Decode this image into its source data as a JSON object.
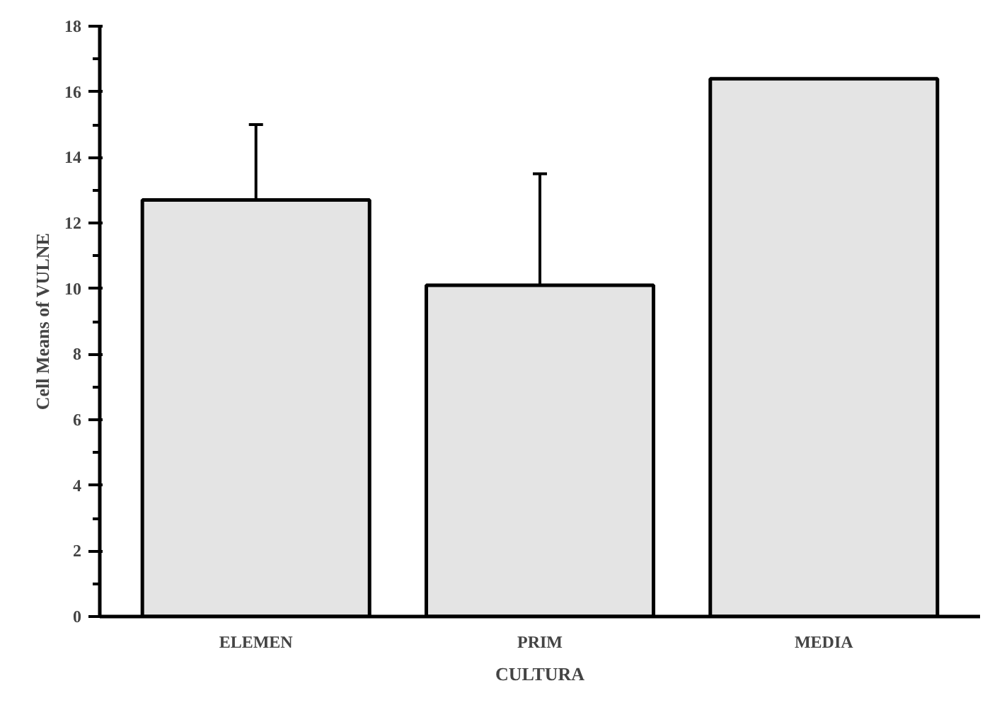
{
  "chart_data": {
    "type": "bar",
    "xlabel": "CULTURA",
    "ylabel": "Cell Means of VULNE",
    "categories": [
      "ELEMEN",
      "PRIM",
      "MEDIA"
    ],
    "values": [
      12.7,
      10.1,
      16.4
    ],
    "errors": [
      [
        12.7,
        15.0
      ],
      [
        10.1,
        13.5
      ],
      null
    ],
    "color": "#e4e4e4",
    "ylim": [
      0,
      18
    ],
    "yticks": [
      0,
      2,
      4,
      6,
      8,
      10,
      12,
      14,
      16,
      18
    ],
    "grid": false
  }
}
